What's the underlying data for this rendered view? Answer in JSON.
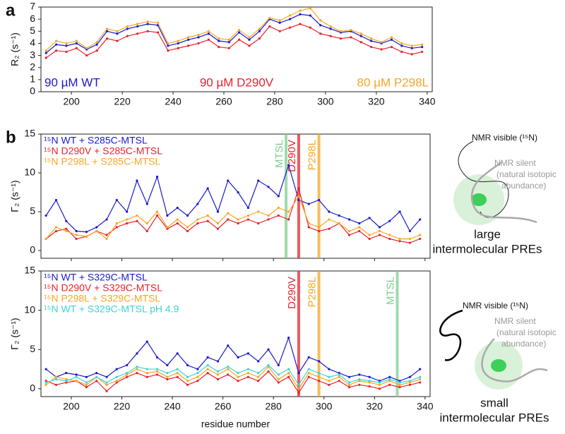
{
  "chart_data": [
    {
      "type": "line",
      "panel_label": "a",
      "ylabel": "R₂ (s⁻¹)",
      "x": [
        190,
        194,
        198,
        202,
        206,
        210,
        214,
        218,
        222,
        226,
        230,
        234,
        238,
        242,
        246,
        250,
        254,
        258,
        262,
        266,
        270,
        274,
        278,
        282,
        286,
        290,
        294,
        298,
        302,
        306,
        310,
        314,
        318,
        322,
        326,
        330,
        334,
        338
      ],
      "series": [
        {
          "name": "90 µM WT",
          "color": "#1a1acc",
          "values": [
            3.2,
            3.9,
            3.8,
            4.0,
            3.5,
            3.9,
            5.0,
            4.8,
            5.2,
            5.4,
            5.6,
            5.5,
            3.8,
            4.0,
            4.3,
            4.5,
            4.8,
            4.2,
            4.1,
            4.9,
            4.3,
            5.0,
            6.0,
            5.7,
            6.0,
            6.4,
            6.3,
            5.5,
            5.2,
            4.9,
            5.0,
            4.6,
            4.2,
            4.0,
            4.3,
            3.8,
            3.6,
            3.7
          ]
        },
        {
          "name": "90 µM D290V",
          "color": "#e8222a",
          "values": [
            2.8,
            3.4,
            3.3,
            3.6,
            3.0,
            3.4,
            4.4,
            4.2,
            4.6,
            4.8,
            5.0,
            4.9,
            3.4,
            3.6,
            3.8,
            4.0,
            4.3,
            3.7,
            3.6,
            4.3,
            3.8,
            4.4,
            5.4,
            5.0,
            5.3,
            5.6,
            5.3,
            4.8,
            4.6,
            4.4,
            4.5,
            4.1,
            3.7,
            3.5,
            3.7,
            3.3,
            3.1,
            3.3
          ]
        },
        {
          "name": "80 µM P298L",
          "color": "#f5a623",
          "values": [
            3.4,
            4.2,
            4.0,
            4.2,
            3.6,
            4.1,
            5.2,
            5.0,
            5.4,
            5.6,
            5.8,
            5.7,
            4.0,
            4.2,
            4.5,
            4.7,
            5.0,
            4.4,
            4.3,
            5.1,
            4.5,
            5.2,
            6.1,
            5.9,
            6.3,
            6.7,
            6.9,
            5.9,
            5.4,
            5.0,
            5.1,
            4.8,
            4.4,
            4.1,
            4.5,
            4.0,
            3.8,
            3.9
          ]
        }
      ],
      "legend": "inline-bottom",
      "xlim": [
        188,
        342
      ],
      "xticks": [
        200,
        220,
        240,
        260,
        280,
        300,
        320,
        340
      ],
      "ylim": [
        0,
        7
      ],
      "yticks": [
        0,
        1,
        2,
        3,
        4,
        5,
        6,
        7
      ]
    },
    {
      "type": "line",
      "panel_label": "b",
      "ylabel": "Γ₂ (s⁻¹)",
      "x": [
        190,
        194,
        198,
        202,
        206,
        210,
        214,
        218,
        222,
        226,
        230,
        234,
        238,
        242,
        246,
        250,
        254,
        258,
        262,
        266,
        270,
        274,
        278,
        282,
        286,
        290,
        294,
        298,
        302,
        306,
        310,
        314,
        318,
        322,
        326,
        330,
        334,
        338
      ],
      "series": [
        {
          "name": "¹⁵N WT + S285C-MTSL",
          "color": "#1a1acc",
          "values": [
            4.5,
            6.5,
            3.8,
            2.5,
            2.4,
            3.0,
            4.0,
            6.5,
            5.0,
            9.0,
            6.0,
            9.5,
            4.5,
            5.5,
            4.5,
            6.0,
            8.0,
            5.0,
            9.0,
            7.5,
            5.5,
            9.0,
            8.2,
            7.0,
            11.0,
            6.5,
            6.0,
            6.5,
            5.0,
            4.5,
            4.0,
            3.5,
            4.2,
            3.0,
            3.8,
            5.0,
            2.5,
            4.0
          ]
        },
        {
          "name": "¹⁵N D290V + S285C-MTSL",
          "color": "#e8222a",
          "values": [
            1.5,
            2.5,
            2.8,
            1.5,
            1.8,
            2.5,
            2.0,
            3.0,
            3.5,
            3.8,
            2.5,
            4.5,
            2.8,
            3.5,
            2.5,
            3.5,
            3.8,
            2.8,
            4.0,
            3.5,
            4.0,
            3.5,
            4.0,
            4.5,
            4.0,
            8.0,
            3.0,
            2.5,
            2.8,
            3.5,
            2.0,
            2.5,
            1.5,
            2.0,
            1.5,
            1.2,
            1.0,
            1.5
          ]
        },
        {
          "name": "¹⁵N P298L + S285C-MTSL",
          "color": "#f5a623",
          "values": [
            1.5,
            3.0,
            2.5,
            2.0,
            1.8,
            2.5,
            1.5,
            3.5,
            4.0,
            4.5,
            3.5,
            5.0,
            3.0,
            4.0,
            3.0,
            4.0,
            4.5,
            3.5,
            4.8,
            4.0,
            4.5,
            5.0,
            4.5,
            5.5,
            5.0,
            7.0,
            3.5,
            3.0,
            4.0,
            3.5,
            2.5,
            3.0,
            2.0,
            2.5,
            2.0,
            1.5,
            1.5,
            2.0
          ]
        }
      ],
      "markers": [
        {
          "label": "MTSL",
          "x": 285,
          "color": "#7fcf8f"
        },
        {
          "label": "D290V",
          "x": 290,
          "color": "#e8222a"
        },
        {
          "label": "P298L",
          "x": 298,
          "color": "#f5a623"
        }
      ],
      "legend": "upper-left",
      "show_xtick_labels": false,
      "xlim": [
        188,
        342
      ],
      "xticks": [
        200,
        220,
        240,
        260,
        280,
        300,
        320,
        340
      ],
      "ylim": [
        -1,
        15
      ],
      "yticks": [
        0,
        5,
        10,
        15
      ]
    },
    {
      "type": "line",
      "ylabel": "Γ₂ (s⁻¹)",
      "xlabel": "residue number",
      "x": [
        190,
        194,
        198,
        202,
        206,
        210,
        214,
        218,
        222,
        226,
        230,
        234,
        238,
        242,
        246,
        250,
        254,
        258,
        262,
        266,
        270,
        274,
        278,
        282,
        286,
        290,
        294,
        298,
        302,
        306,
        310,
        314,
        318,
        322,
        326,
        330,
        334,
        338
      ],
      "series": [
        {
          "name": "¹⁵N WT + S329C-MTSL",
          "color": "#1a1acc",
          "values": [
            2.5,
            1.5,
            2.0,
            1.8,
            1.5,
            2.0,
            1.5,
            2.5,
            3.0,
            4.5,
            6.0,
            4.0,
            3.0,
            4.5,
            3.0,
            2.5,
            4.0,
            3.5,
            5.5,
            4.0,
            4.5,
            3.5,
            5.0,
            3.0,
            6.5,
            2.0,
            4.0,
            3.5,
            2.5,
            2.0,
            1.5,
            1.8,
            1.5,
            1.0,
            1.5,
            1.0,
            1.5,
            2.5
          ]
        },
        {
          "name": "¹⁵N D290V + S329C-MTSL",
          "color": "#e8222a",
          "values": [
            1.0,
            0.5,
            0.8,
            1.0,
            0.2,
            1.0,
            -0.3,
            0.8,
            1.5,
            2.0,
            1.5,
            1.8,
            1.2,
            1.5,
            0.5,
            1.0,
            2.0,
            1.2,
            1.8,
            1.0,
            1.5,
            1.0,
            2.2,
            0.8,
            1.5,
            -0.5,
            1.5,
            1.0,
            0.5,
            1.0,
            0.2,
            0.5,
            0.3,
            0.0,
            0.5,
            0.2,
            0.5,
            0.8
          ]
        },
        {
          "name": "¹⁵N P298L + S329C-MTSL",
          "color": "#f5a623",
          "values": [
            0.5,
            1.5,
            1.2,
            1.0,
            0.5,
            1.5,
            0.5,
            1.0,
            1.8,
            2.5,
            2.0,
            2.2,
            1.5,
            2.0,
            1.0,
            1.5,
            2.5,
            1.8,
            2.5,
            1.5,
            2.0,
            1.5,
            2.8,
            1.2,
            2.0,
            0.0,
            2.0,
            1.5,
            1.0,
            1.5,
            0.5,
            1.0,
            0.8,
            0.5,
            1.0,
            0.5,
            0.8,
            1.2
          ]
        },
        {
          "name": "¹⁵N WT + S329C-MTSL pH 4.9",
          "color": "#3fd4d4",
          "values": [
            0.8,
            1.2,
            1.0,
            1.5,
            0.8,
            1.5,
            0.8,
            1.5,
            2.0,
            2.8,
            2.5,
            2.5,
            2.0,
            2.5,
            1.5,
            2.0,
            3.0,
            2.2,
            2.8,
            2.0,
            2.5,
            2.0,
            3.0,
            1.8,
            2.5,
            0.5,
            2.5,
            2.0,
            1.5,
            1.8,
            0.8,
            1.2,
            1.0,
            0.8,
            1.2,
            0.8,
            1.0,
            1.5
          ]
        }
      ],
      "markers": [
        {
          "label": "D290V",
          "x": 290,
          "color": "#e8222a"
        },
        {
          "label": "P298L",
          "x": 298,
          "color": "#f5a623"
        },
        {
          "label": "MTSL",
          "x": 329,
          "color": "#7fcf8f"
        }
      ],
      "legend": "upper-left",
      "show_xtick_labels": true,
      "xlim": [
        188,
        342
      ],
      "xticks": [
        200,
        220,
        240,
        260,
        280,
        300,
        320,
        340
      ],
      "ylim": [
        -1,
        15
      ],
      "yticks": [
        0,
        5,
        10,
        15
      ]
    }
  ],
  "diagrams": [
    {
      "visible": "NMR visible (¹⁵N)",
      "silent": [
        "NMR silent",
        "(natural isotopic",
        "abundance)"
      ],
      "caption": [
        "large",
        "intermolecular PREs"
      ]
    },
    {
      "visible": "NMR visible (¹⁵N)",
      "silent": [
        "NMR silent",
        "(natural isotopic",
        "abundance)"
      ],
      "caption": [
        "small",
        "intermolecular PREs"
      ]
    }
  ]
}
